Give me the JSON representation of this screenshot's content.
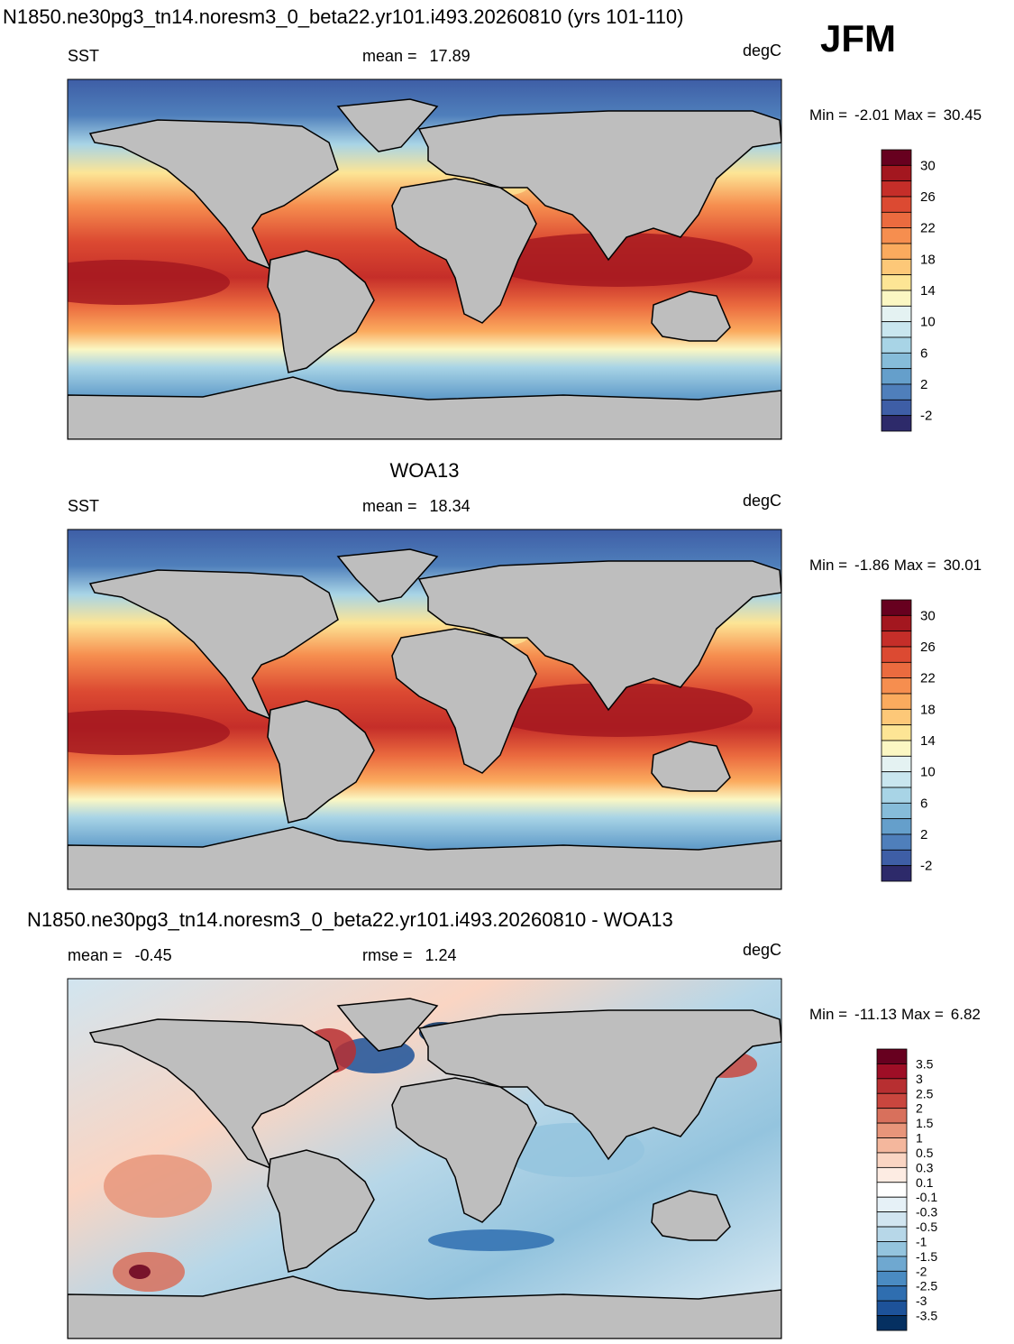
{
  "title": "N1850.ne30pg3_tn14.noresm3_0_beta22.yr101.i493.20260810 (yrs 101-110)",
  "season": "JFM",
  "panels": [
    {
      "left_text": "SST",
      "stats": [
        {
          "label": "mean =",
          "value": 17.89
        }
      ],
      "units": "degC",
      "min_label": "Min =",
      "min": -2.01,
      "max_label": "Max =",
      "max": 30.45,
      "colorbar": {
        "colors": [
          "#67001f",
          "#a3171f",
          "#c52e29",
          "#dc4a32",
          "#eb6b3f",
          "#f68e4f",
          "#fbab5e",
          "#fdc878",
          "#fde595",
          "#fbf7c3",
          "#e4f2f2",
          "#c9e6ef",
          "#a8d4e6",
          "#86bcd9",
          "#659fcb",
          "#4f7fbb",
          "#3e5ea6",
          "#2d2a6a"
        ],
        "labels": [
          30,
          26,
          22,
          18,
          14,
          10,
          6,
          2,
          -2
        ]
      }
    },
    {
      "heading": "WOA13",
      "left_text": "SST",
      "stats": [
        {
          "label": "mean =",
          "value": 18.34
        }
      ],
      "units": "degC",
      "min_label": "Min =",
      "min": -1.86,
      "max_label": "Max =",
      "max": 30.01,
      "colorbar": {
        "colors": [
          "#67001f",
          "#a3171f",
          "#c52e29",
          "#dc4a32",
          "#eb6b3f",
          "#f68e4f",
          "#fbab5e",
          "#fdc878",
          "#fde595",
          "#fbf7c3",
          "#e4f2f2",
          "#c9e6ef",
          "#a8d4e6",
          "#86bcd9",
          "#659fcb",
          "#4f7fbb",
          "#3e5ea6",
          "#2d2a6a"
        ],
        "labels": [
          30,
          26,
          22,
          18,
          14,
          10,
          6,
          2,
          -2
        ]
      }
    },
    {
      "heading": "N1850.ne30pg3_tn14.noresm3_0_beta22.yr101.i493.20260810 - WOA13",
      "stats": [
        {
          "label": "mean =",
          "value": -0.45
        },
        {
          "label": "rmse =",
          "value": 1.24
        }
      ],
      "units": "degC",
      "min_label": "Min =",
      "min": -11.13,
      "max_label": "Max =",
      "max": 6.82,
      "colorbar": {
        "colors": [
          "#67001f",
          "#9e0e26",
          "#b72f31",
          "#c9463e",
          "#d8705c",
          "#e8957a",
          "#f4b79d",
          "#fad5c3",
          "#fdece3",
          "#ffffff",
          "#e6f1f7",
          "#d1e5f0",
          "#b7d7e8",
          "#94c4de",
          "#6fa8d0",
          "#4a8bc2",
          "#2f6eb0",
          "#1d5299",
          "#053061"
        ],
        "labels": [
          3.5,
          3,
          2.5,
          2,
          1.5,
          1,
          0.5,
          0.3,
          0.1,
          -0.1,
          -0.3,
          -0.5,
          -1,
          -1.5,
          -2,
          -2.5,
          -3,
          -3.5
        ]
      }
    }
  ]
}
